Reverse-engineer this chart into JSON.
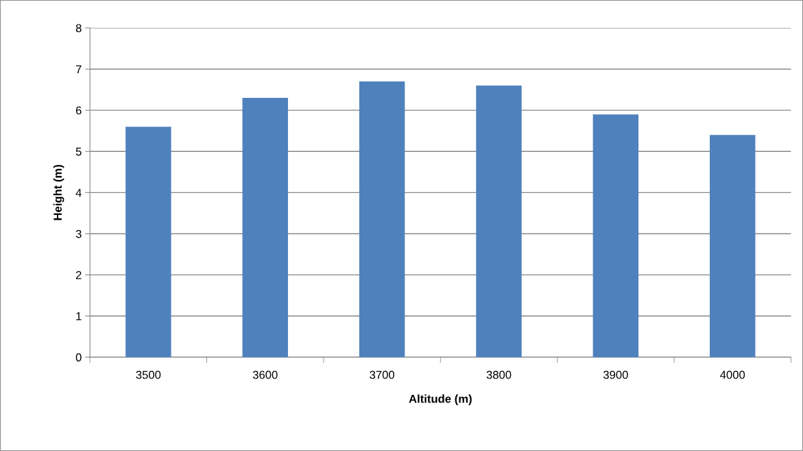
{
  "chart_data": {
    "type": "bar",
    "xlabel": "Altitude (m)",
    "ylabel": "Height (m)",
    "categories": [
      "3500",
      "3600",
      "3700",
      "3800",
      "3900",
      "4000"
    ],
    "values": [
      5.6,
      6.3,
      6.7,
      6.6,
      5.9,
      5.4
    ],
    "color": "#4f81bd",
    "ylim": [
      0,
      8
    ],
    "yticks": [
      0,
      1,
      2,
      3,
      4,
      5,
      6,
      7,
      8
    ],
    "grid": "y",
    "legend": false
  }
}
